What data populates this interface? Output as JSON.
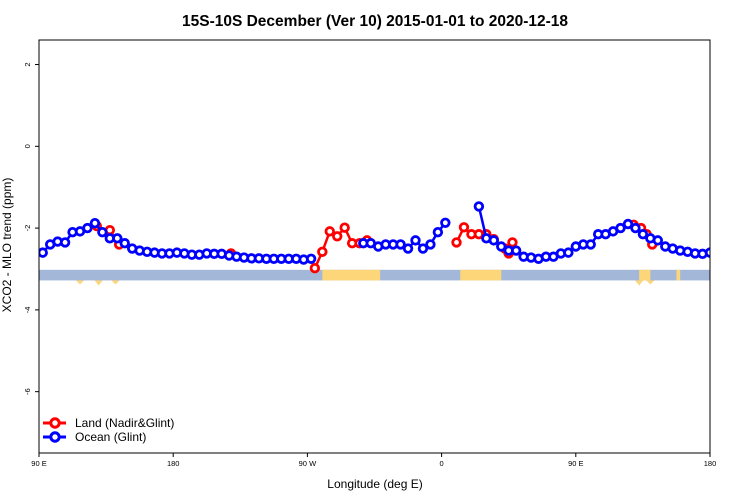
{
  "chart_data": {
    "type": "scatter",
    "title": "15S-10S December (Ver 10)   2015-01-01 to 2020-12-18",
    "xlabel": "Longitude (deg E)",
    "ylabel": "XCO2 - MLO trend (ppm)",
    "xlim": [
      -90,
      270
    ],
    "ylim": [
      -7.5,
      2.6
    ],
    "x_ticks": [
      {
        "value": -90,
        "label": "90 E"
      },
      {
        "value": -18,
        "label": "180"
      },
      {
        "value": 54,
        "label": "90 W"
      },
      {
        "value": 126,
        "label": "0"
      },
      {
        "value": 198,
        "label": "90 E"
      },
      {
        "value": 270,
        "label": "180"
      }
    ],
    "y_ticks": [
      {
        "value": 2,
        "label": "2"
      },
      {
        "value": 0,
        "label": "0"
      },
      {
        "value": -2,
        "label": "-2"
      },
      {
        "value": -4,
        "label": "-4"
      },
      {
        "value": -6,
        "label": "-6"
      }
    ],
    "legend_position": "bottom-left",
    "land_band": {
      "y_top": -3.02,
      "y_bottom": -3.28,
      "ocean_color": "#a3b8d8",
      "land_color": "#fdd67a"
    },
    "land_segments": [
      [
        62,
        93
      ],
      [
        136,
        158
      ],
      [
        232,
        238
      ],
      [
        252,
        254
      ]
    ],
    "series": [
      {
        "name": "Land (Nadir&Glint)",
        "color": "#ff0000",
        "points": [
          [
            -59,
            -1.95
          ],
          [
            -52,
            -2.05
          ],
          [
            -47,
            -2.4
          ],
          [
            13,
            -2.62
          ],
          [
            58,
            -2.98
          ],
          [
            62,
            -2.58
          ],
          [
            66,
            -2.08
          ],
          [
            70,
            -2.2
          ],
          [
            74,
            -1.99
          ],
          [
            78,
            -2.37
          ],
          [
            82,
            -2.37
          ],
          [
            86,
            -2.3
          ],
          [
            134,
            -2.35
          ],
          [
            138,
            -1.98
          ],
          [
            142,
            -2.15
          ],
          [
            146,
            -2.15
          ],
          [
            150,
            -2.15
          ],
          [
            154,
            -2.27
          ],
          [
            160,
            -2.5
          ],
          [
            162,
            -2.62
          ],
          [
            164,
            -2.35
          ],
          [
            229,
            -1.92
          ],
          [
            233,
            -2.0
          ],
          [
            236,
            -2.15
          ],
          [
            239,
            -2.4
          ]
        ]
      },
      {
        "name": "Ocean (Glint)",
        "color": "#0000ff",
        "points": [
          [
            -88,
            -2.6
          ],
          [
            -84,
            -2.4
          ],
          [
            -80,
            -2.33
          ],
          [
            -76,
            -2.35
          ],
          [
            -72,
            -2.1
          ],
          [
            -68,
            -2.08
          ],
          [
            -64,
            -2.0
          ],
          [
            -60,
            -1.88
          ],
          [
            -56,
            -2.1
          ],
          [
            -52,
            -2.25
          ],
          [
            -48,
            -2.25
          ],
          [
            -44,
            -2.37
          ],
          [
            -40,
            -2.5
          ],
          [
            -36,
            -2.55
          ],
          [
            -32,
            -2.58
          ],
          [
            -28,
            -2.6
          ],
          [
            -24,
            -2.62
          ],
          [
            -20,
            -2.62
          ],
          [
            -16,
            -2.6
          ],
          [
            -12,
            -2.62
          ],
          [
            -8,
            -2.65
          ],
          [
            -4,
            -2.65
          ],
          [
            0,
            -2.62
          ],
          [
            4,
            -2.63
          ],
          [
            8,
            -2.63
          ],
          [
            12,
            -2.67
          ],
          [
            16,
            -2.7
          ],
          [
            20,
            -2.72
          ],
          [
            24,
            -2.74
          ],
          [
            28,
            -2.74
          ],
          [
            32,
            -2.75
          ],
          [
            36,
            -2.75
          ],
          [
            40,
            -2.75
          ],
          [
            44,
            -2.75
          ],
          [
            48,
            -2.75
          ],
          [
            52,
            -2.77
          ],
          [
            56,
            -2.75
          ],
          [
            84,
            -2.37
          ],
          [
            88,
            -2.37
          ],
          [
            92,
            -2.45
          ],
          [
            96,
            -2.4
          ],
          [
            100,
            -2.4
          ],
          [
            104,
            -2.4
          ],
          [
            108,
            -2.5
          ],
          [
            112,
            -2.3
          ],
          [
            116,
            -2.5
          ],
          [
            120,
            -2.4
          ],
          [
            124,
            -2.1
          ],
          [
            128,
            -1.87
          ],
          [
            146,
            -1.47
          ],
          [
            150,
            -2.25
          ],
          [
            154,
            -2.3
          ],
          [
            158,
            -2.45
          ],
          [
            162,
            -2.55
          ],
          [
            166,
            -2.55
          ],
          [
            170,
            -2.7
          ],
          [
            174,
            -2.72
          ],
          [
            178,
            -2.75
          ],
          [
            182,
            -2.7
          ],
          [
            186,
            -2.7
          ],
          [
            190,
            -2.62
          ],
          [
            194,
            -2.6
          ],
          [
            198,
            -2.45
          ],
          [
            202,
            -2.4
          ],
          [
            206,
            -2.4
          ],
          [
            210,
            -2.15
          ],
          [
            214,
            -2.15
          ],
          [
            218,
            -2.08
          ],
          [
            222,
            -2.0
          ],
          [
            226,
            -1.9
          ],
          [
            230,
            -2.0
          ],
          [
            234,
            -2.15
          ],
          [
            238,
            -2.25
          ],
          [
            242,
            -2.3
          ],
          [
            246,
            -2.45
          ],
          [
            250,
            -2.5
          ],
          [
            254,
            -2.55
          ],
          [
            258,
            -2.58
          ],
          [
            262,
            -2.62
          ],
          [
            266,
            -2.63
          ],
          [
            270,
            -2.6
          ]
        ]
      }
    ]
  }
}
